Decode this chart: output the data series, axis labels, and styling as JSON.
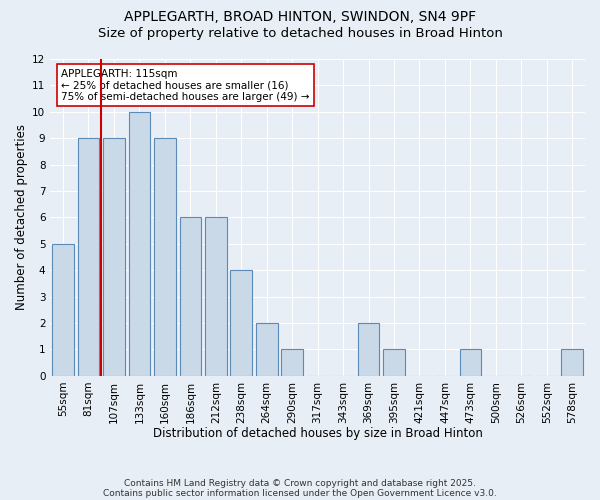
{
  "title1": "APPLEGARTH, BROAD HINTON, SWINDON, SN4 9PF",
  "title2": "Size of property relative to detached houses in Broad Hinton",
  "xlabel": "Distribution of detached houses by size in Broad Hinton",
  "ylabel": "Number of detached properties",
  "categories": [
    "55sqm",
    "81sqm",
    "107sqm",
    "133sqm",
    "160sqm",
    "186sqm",
    "212sqm",
    "238sqm",
    "264sqm",
    "290sqm",
    "317sqm",
    "343sqm",
    "369sqm",
    "395sqm",
    "421sqm",
    "447sqm",
    "473sqm",
    "500sqm",
    "526sqm",
    "552sqm",
    "578sqm"
  ],
  "values": [
    5,
    9,
    9,
    10,
    9,
    6,
    6,
    4,
    2,
    1,
    0,
    0,
    2,
    1,
    0,
    0,
    1,
    0,
    0,
    0,
    1
  ],
  "bar_color": "#c9d9e8",
  "bar_edge_color": "#5a8ab5",
  "vline_x": 1.5,
  "vline_color": "#cc0000",
  "annotation_line1": "APPLEGARTH: 115sqm",
  "annotation_line2": "← 25% of detached houses are smaller (16)",
  "annotation_line3": "75% of semi-detached houses are larger (49) →",
  "ylim": [
    0,
    12
  ],
  "yticks": [
    0,
    1,
    2,
    3,
    4,
    5,
    6,
    7,
    8,
    9,
    10,
    11,
    12
  ],
  "bg_color": "#e8eef5",
  "plot_bg_color": "#e8eef5",
  "footer_line1": "Contains HM Land Registry data © Crown copyright and database right 2025.",
  "footer_line2": "Contains public sector information licensed under the Open Government Licence v3.0.",
  "title1_fontsize": 10,
  "title2_fontsize": 9.5,
  "axis_label_fontsize": 8.5,
  "tick_fontsize": 7.5,
  "annotation_fontsize": 7.5,
  "footer_fontsize": 6.5
}
